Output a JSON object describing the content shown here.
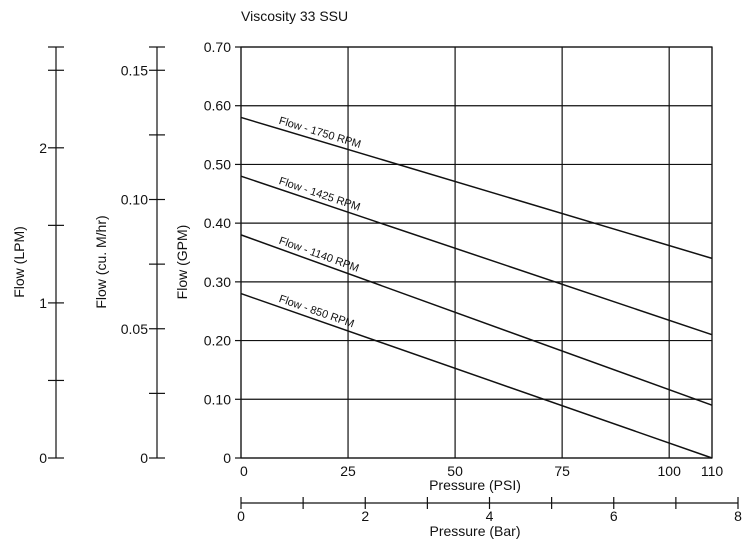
{
  "chart_data": {
    "type": "line",
    "title": "Viscosity 33 SSU",
    "x_axis": {
      "label": "Pressure (PSI)",
      "range": [
        0,
        110
      ],
      "ticks": [
        0,
        25,
        50,
        75,
        100,
        110
      ],
      "gridlines": [
        0,
        25,
        50,
        75,
        100,
        110
      ]
    },
    "x_axis_secondary": {
      "label": "Pressure (Bar)",
      "range": [
        0,
        8
      ],
      "labeled_ticks": [
        0,
        2,
        4,
        6,
        8
      ],
      "minor_ticks": [
        1,
        3,
        5,
        7
      ]
    },
    "y_axis": {
      "label": "Flow (GPM)",
      "range": [
        0,
        0.7
      ],
      "ticks": [
        "0",
        "0.10",
        "0.20",
        "0.30",
        "0.40",
        "0.50",
        "0.60",
        "0.70"
      ]
    },
    "y_axis_cu_m_hr": {
      "label": "Flow (cu. M/hr)",
      "range": [
        0,
        0.159
      ],
      "labeled_ticks": [
        "0",
        "0.05",
        "0.10",
        "0.15"
      ],
      "minor_ticks": [
        0.025,
        0.075,
        0.125
      ]
    },
    "y_axis_lpm": {
      "label": "Flow (LPM)",
      "range": [
        0,
        2.65
      ],
      "labeled_ticks": [
        "0",
        "1",
        "2"
      ],
      "minor_ticks": [
        0.5,
        1.5,
        2.5
      ]
    },
    "grid": true,
    "series": [
      {
        "name": "Flow - 1750 RPM",
        "x": [
          0,
          110
        ],
        "y": [
          0.58,
          0.34
        ]
      },
      {
        "name": "Flow - 1425 RPM",
        "x": [
          0,
          110
        ],
        "y": [
          0.48,
          0.21
        ]
      },
      {
        "name": "Flow - 1140 RPM",
        "x": [
          0,
          110
        ],
        "y": [
          0.38,
          0.09
        ]
      },
      {
        "name": "Flow - 850 RPM",
        "x": [
          0,
          110
        ],
        "y": [
          0.28,
          0.0
        ]
      }
    ]
  }
}
